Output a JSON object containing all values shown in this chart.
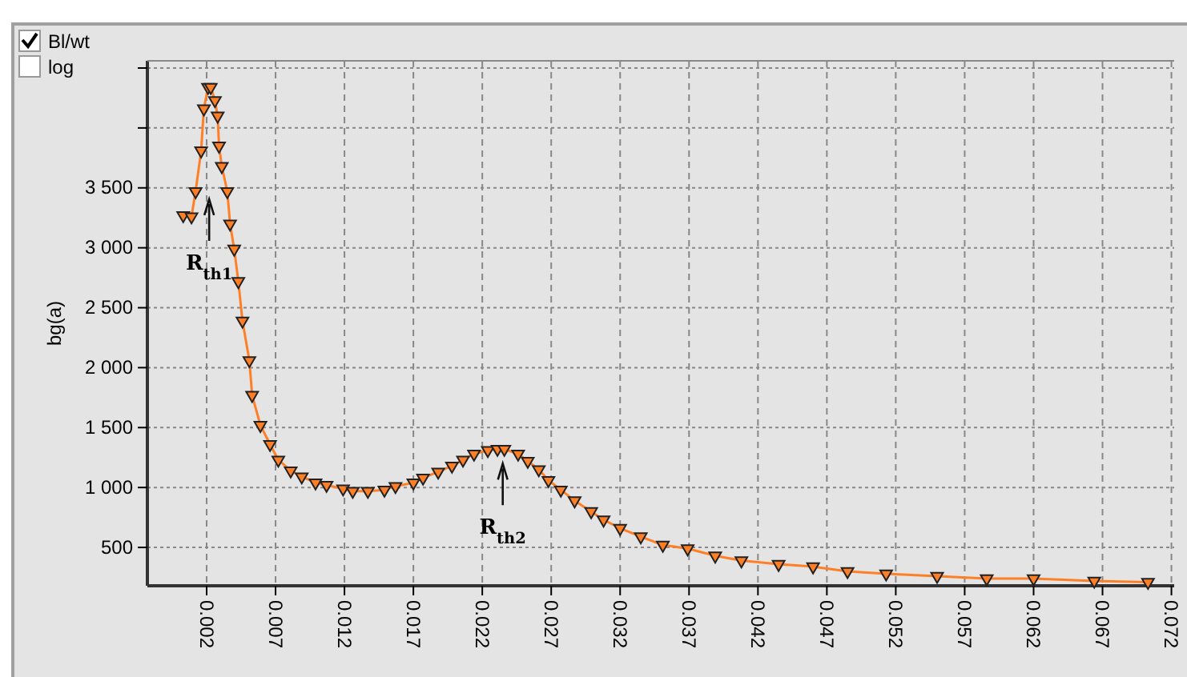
{
  "chart_data": {
    "type": "line",
    "ylabel": "bg(a)",
    "x": [
      0.0003,
      0.0009,
      0.0012,
      0.0016,
      0.0018,
      0.0021,
      0.0023,
      0.0026,
      0.0028,
      0.0029,
      0.0031,
      0.0035,
      0.0037,
      0.004,
      0.0043,
      0.0046,
      0.0051,
      0.0053,
      0.0059,
      0.0066,
      0.0072,
      0.0081,
      0.0089,
      0.0099,
      0.0107,
      0.0119,
      0.0126,
      0.0137,
      0.0149,
      0.0157,
      0.017,
      0.0177,
      0.0188,
      0.0198,
      0.0206,
      0.0214,
      0.0224,
      0.0231,
      0.0236,
      0.0246,
      0.0253,
      0.0261,
      0.0268,
      0.0277,
      0.0287,
      0.0299,
      0.0308,
      0.032,
      0.0335,
      0.0351,
      0.0369,
      0.0389,
      0.0408,
      0.0435,
      0.046,
      0.0485,
      0.0513,
      0.055,
      0.0586,
      0.062,
      0.0664,
      0.0703
    ],
    "series": [
      {
        "color": "#ff7f27",
        "values": [
          3270,
          3260,
          3470,
          3810,
          4160,
          4340,
          4340,
          4230,
          4100,
          3850,
          3680,
          3470,
          3200,
          2990,
          2720,
          2390,
          2060,
          1770,
          1520,
          1360,
          1230,
          1140,
          1090,
          1040,
          1020,
          990,
          970,
          970,
          980,
          1010,
          1040,
          1080,
          1130,
          1180,
          1230,
          1280,
          1310,
          1320,
          1320,
          1280,
          1220,
          1150,
          1060,
          980,
          890,
          800,
          730,
          660,
          590,
          520,
          490,
          430,
          390,
          360,
          340,
          300,
          280,
          260,
          240,
          240,
          220,
          210
        ]
      }
    ],
    "xlim": [
      -0.0023,
      0.0722
    ],
    "ylim": [
      180,
      4560
    ],
    "xticks": [
      0.002,
      0.007,
      0.012,
      0.017,
      0.022,
      0.027,
      0.032,
      0.037,
      0.042,
      0.047,
      0.052,
      0.057,
      0.062,
      0.067,
      0.072
    ],
    "yticks": [
      {
        "value": 500,
        "label": "500"
      },
      {
        "value": 1000,
        "label": "1 000"
      },
      {
        "value": 1500,
        "label": "1 500"
      },
      {
        "value": 2000,
        "label": "2 000"
      },
      {
        "value": 2500,
        "label": "2 500"
      },
      {
        "value": 3000,
        "label": "3 000"
      },
      {
        "value": 3500,
        "label": "3 500"
      },
      {
        "value": 4000,
        "label": null
      },
      {
        "value": 4500,
        "label": null
      }
    ],
    "grid": true,
    "marker": "triangle",
    "line_style": "solid",
    "annotations": [
      "R$_{th1}$",
      "R$_{th2}$",
      "Bl/wt",
      "log"
    ]
  }
}
